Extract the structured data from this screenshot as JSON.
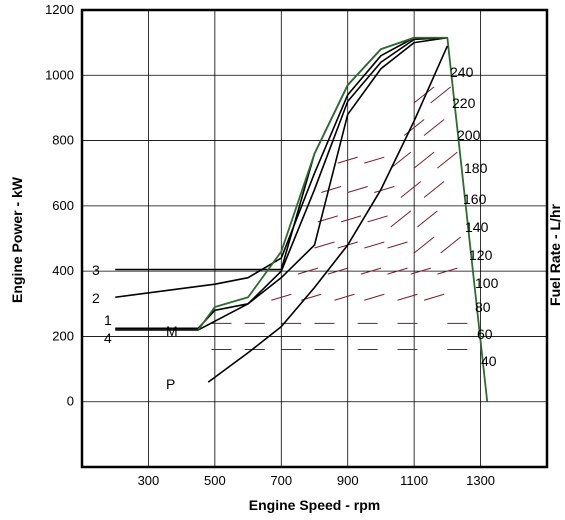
{
  "chart_data": {
    "type": "line",
    "xlabel": "Engine Speed - rpm",
    "ylabel": "Engine Power - kW",
    "y2label": "Fuel Rate - L/hr",
    "xlim": [
      100,
      1500
    ],
    "ylim": [
      -200,
      1200
    ],
    "x_ticks": [
      300,
      500,
      700,
      900,
      1100,
      1300
    ],
    "y_ticks": [
      0,
      200,
      400,
      600,
      800,
      1000,
      1200
    ],
    "grid": true,
    "series": [
      {
        "name": "3",
        "x": [
          200,
          700,
          800,
          900,
          1000,
          1100,
          1200
        ],
        "y": [
          405,
          405,
          760,
          970,
          1080,
          1115,
          1115
        ]
      },
      {
        "name": "2",
        "x": [
          200,
          500,
          600,
          700,
          800,
          900,
          1000,
          1100,
          1200
        ],
        "y": [
          320,
          360,
          380,
          440,
          700,
          940,
          1060,
          1115,
          1115
        ]
      },
      {
        "name": "1",
        "x": [
          200,
          450,
          500,
          600,
          700,
          800,
          900,
          1000,
          1100,
          1200
        ],
        "y": [
          225,
          225,
          280,
          300,
          400,
          650,
          920,
          1040,
          1110,
          1115
        ]
      },
      {
        "name": "4",
        "x": [
          200,
          450,
          600,
          700,
          800,
          900,
          1000,
          1100,
          1200
        ],
        "y": [
          220,
          220,
          300,
          380,
          480,
          880,
          1020,
          1100,
          1115
        ]
      },
      {
        "name": "M",
        "x": [
          450,
          500,
          600,
          700,
          800,
          900,
          1000,
          1100,
          1200,
          1320
        ],
        "y": [
          220,
          290,
          320,
          460,
          760,
          970,
          1080,
          1115,
          1115,
          0
        ]
      },
      {
        "name": "P",
        "x": [
          480,
          600,
          700,
          800,
          900,
          1000,
          1100,
          1200
        ],
        "y": [
          60,
          150,
          230,
          350,
          480,
          650,
          860,
          1090
        ]
      }
    ],
    "fuel_rate_contours": [
      {
        "label": "40",
        "value": 40
      },
      {
        "label": "60",
        "value": 60
      },
      {
        "label": "80",
        "value": 80
      },
      {
        "label": "100",
        "value": 100
      },
      {
        "label": "120",
        "value": 120
      },
      {
        "label": "140",
        "value": 140
      },
      {
        "label": "160",
        "value": 160
      },
      {
        "label": "180",
        "value": 180
      },
      {
        "label": "200",
        "value": 200
      },
      {
        "label": "220",
        "value": 220
      },
      {
        "label": "240",
        "value": 240
      }
    ],
    "colors": {
      "lug_curve": "#2e6b2e",
      "curves": "#000000",
      "contours": "#7a1e2c",
      "grid": "#000000"
    }
  }
}
